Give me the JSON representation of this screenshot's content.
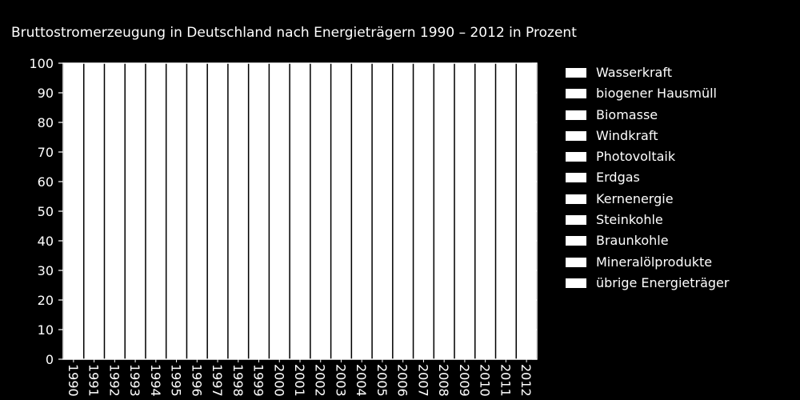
{
  "chart_data": {
    "type": "bar",
    "stacked": true,
    "title": "Bruttostromerzeugung in Deutschland nach Energieträgern 1990 – 2012 in Prozent",
    "xlabel": "",
    "ylabel": "",
    "ylim": [
      0,
      100
    ],
    "yticks": [
      "0",
      "10",
      "20",
      "30",
      "40",
      "50",
      "60",
      "70",
      "80",
      "90",
      "100"
    ],
    "categories": [
      "1990",
      "1991",
      "1992",
      "1993",
      "1994",
      "1995",
      "1996",
      "1997",
      "1998",
      "1999",
      "2000",
      "2001",
      "2002",
      "2003",
      "2004",
      "2005",
      "2006",
      "2007",
      "2008",
      "2009",
      "2010",
      "2011",
      "2012"
    ],
    "bar_totals": [
      100,
      100,
      100,
      100,
      100,
      100,
      100,
      100,
      100,
      100,
      100,
      100,
      100,
      100,
      100,
      100,
      100,
      100,
      100,
      100,
      100,
      100,
      100
    ],
    "legend": [
      "Wasserkraft",
      "biogener Hausmüll",
      "Biomasse",
      "Windkraft",
      "Photovoltaik",
      "Erdgas",
      "Kernenergie",
      "Steinkohle",
      "Braunkohle",
      "Mineralölprodukte",
      "übrige Energieträger"
    ],
    "legend_position": "right",
    "grid": false,
    "colors": {
      "background": "#000000",
      "bars": "#ffffff",
      "bar_edges": "#000000",
      "axes": "#ffffff",
      "text": "#ffffff"
    }
  }
}
